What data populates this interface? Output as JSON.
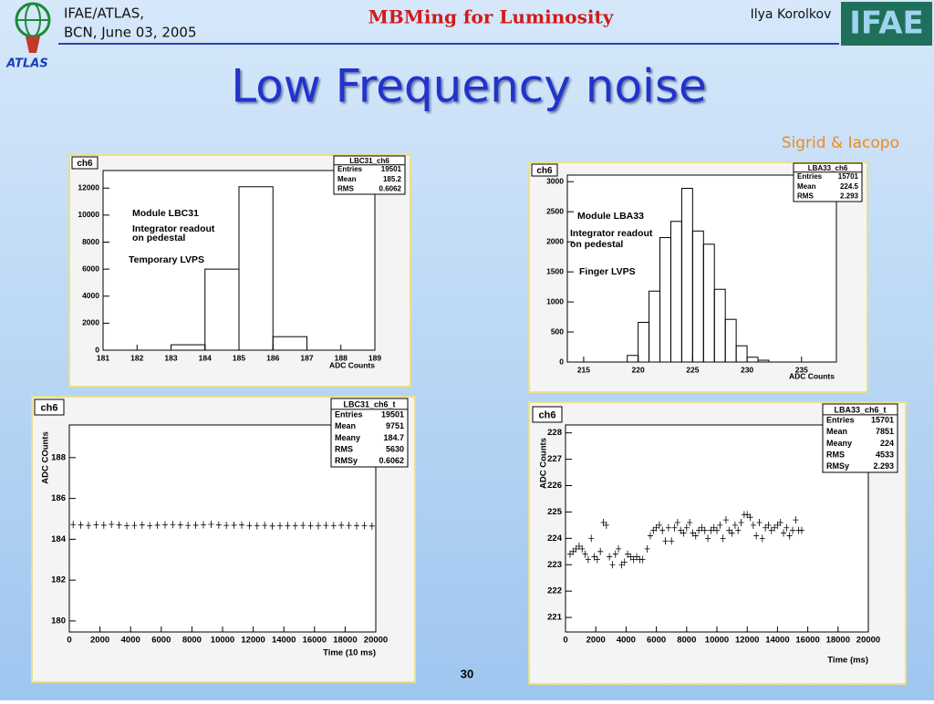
{
  "header": {
    "org": "IFAE/ATLAS,",
    "date": "BCN, June 03, 2005",
    "talk": "MBMing for Luminosity",
    "author": "Ilya Korolkov",
    "logo_left": "ATLAS",
    "logo_right": "IFAE"
  },
  "title": "Low Frequency noise",
  "credits": "Sigrid & Iacopo",
  "page_number": "30",
  "chart_data": [
    {
      "type": "histogram",
      "title": "ch6",
      "xlabel": "ADC Counts",
      "bins": [
        181,
        182,
        183,
        184,
        185,
        186,
        187,
        188,
        189
      ],
      "values": [
        0,
        0,
        400,
        6000,
        12100,
        1000,
        0,
        0
      ],
      "xlim": [
        181,
        189
      ],
      "xticks": [
        181,
        182,
        183,
        184,
        185,
        186,
        187,
        188,
        189
      ],
      "ylim": [
        0,
        13300
      ],
      "yticks": [
        0,
        2000,
        4000,
        6000,
        8000,
        10000,
        12000
      ],
      "annotations": [
        "Module LBC31",
        "Integrator readout",
        "on pedestal",
        "Temporary LVPS"
      ],
      "stats": {
        "name": "LBC31_ch6",
        "rows": [
          {
            "label": "Entries",
            "value": 19501
          },
          {
            "label": "Mean",
            "value": 185.2
          },
          {
            "label": "RMS",
            "value": 0.6062
          }
        ]
      },
      "color": "#000000"
    },
    {
      "type": "histogram",
      "title": "ch6",
      "xlabel": "ADC Counts",
      "bins": [
        219,
        220,
        221,
        222,
        223,
        224,
        225,
        226,
        227,
        228,
        229,
        230,
        231,
        232
      ],
      "values": [
        110,
        660,
        1180,
        2070,
        2340,
        2890,
        2180,
        1960,
        1210,
        710,
        270,
        80,
        30
      ],
      "xlim": [
        213.5,
        238.2
      ],
      "xticks": [
        215,
        220,
        225,
        230,
        235
      ],
      "ylim": [
        0,
        3110
      ],
      "yticks": [
        0,
        500,
        1000,
        1500,
        2000,
        2500,
        3000
      ],
      "annotations": [
        "Module LBA33",
        "Integrator readout",
        "on pedestal",
        "Finger LVPS"
      ],
      "stats": {
        "name": "LBA33_ch6",
        "rows": [
          {
            "label": "Entries",
            "value": 15701
          },
          {
            "label": "Mean",
            "value": 224.5
          },
          {
            "label": "RMS",
            "value": 2.293
          }
        ]
      },
      "color": "#000000"
    },
    {
      "type": "scatter",
      "title": "ch6",
      "xlabel": "Time (10 ms)",
      "ylabel": "ADC COunts",
      "x": [
        250,
        750,
        1250,
        1750,
        2250,
        2750,
        3250,
        3750,
        4250,
        4750,
        5250,
        5750,
        6250,
        6750,
        7250,
        7750,
        8250,
        8750,
        9250,
        9750,
        10250,
        10750,
        11250,
        11750,
        12250,
        12750,
        13250,
        13750,
        14250,
        14750,
        15250,
        15750,
        16250,
        16750,
        17250,
        17750,
        18250,
        18750,
        19250,
        19750
      ],
      "values": [
        184.72,
        184.7,
        184.68,
        184.71,
        184.69,
        184.73,
        184.7,
        184.66,
        184.68,
        184.7,
        184.67,
        184.69,
        184.71,
        184.72,
        184.7,
        184.68,
        184.69,
        184.71,
        184.73,
        184.7,
        184.68,
        184.69,
        184.7,
        184.67,
        184.66,
        184.68,
        184.65,
        184.66,
        184.67,
        184.66,
        184.68,
        184.67,
        184.66,
        184.68,
        184.67,
        184.69,
        184.68,
        184.66,
        184.67,
        184.65
      ],
      "xlim": [
        0,
        20000
      ],
      "xticks": [
        0,
        2000,
        4000,
        6000,
        8000,
        10000,
        12000,
        14000,
        16000,
        18000,
        20000
      ],
      "ylim": [
        179.46,
        189.6
      ],
      "yticks": [
        180,
        182,
        184,
        186,
        188
      ],
      "stats": {
        "name": "LBC31_ch6_t",
        "rows": [
          {
            "label": "Entries",
            "value": 19501
          },
          {
            "label": "Mean",
            "value": 9751
          },
          {
            "label": "Meany",
            "value": 184.7
          },
          {
            "label": "RMS",
            "value": 5630
          },
          {
            "label": "RMSy",
            "value": 0.6062
          }
        ]
      },
      "color": "#000000"
    },
    {
      "type": "scatter",
      "title": "ch6",
      "xlabel": "Time (ms)",
      "ylabel": "ADC Counts",
      "x": [
        300,
        500,
        700,
        900,
        1100,
        1300,
        1500,
        1700,
        1900,
        2100,
        2300,
        2500,
        2700,
        2900,
        3100,
        3300,
        3500,
        3700,
        3900,
        4100,
        4300,
        4500,
        4700,
        4900,
        5100,
        5400,
        5600,
        5800,
        6000,
        6200,
        6400,
        6600,
        6800,
        7000,
        7200,
        7400,
        7600,
        7800,
        8000,
        8200,
        8400,
        8600,
        8800,
        9000,
        9200,
        9400,
        9600,
        9800,
        10000,
        10200,
        10400,
        10600,
        10800,
        11000,
        11200,
        11400,
        11600,
        11800,
        12000,
        12200,
        12400,
        12600,
        12800,
        13000,
        13200,
        13400,
        13600,
        13800,
        14000,
        14200,
        14400,
        14600,
        14800,
        15000,
        15200,
        15400,
        15600
      ],
      "values": [
        223.4,
        223.5,
        223.6,
        223.7,
        223.6,
        223.4,
        223.2,
        224.0,
        223.3,
        223.2,
        223.5,
        224.6,
        224.5,
        223.3,
        223.0,
        223.4,
        223.6,
        223.0,
        223.1,
        223.4,
        223.3,
        223.2,
        223.3,
        223.2,
        223.2,
        223.6,
        224.1,
        224.3,
        224.4,
        224.5,
        224.3,
        223.9,
        224.4,
        223.9,
        224.4,
        224.6,
        224.3,
        224.2,
        224.4,
        224.6,
        224.2,
        224.1,
        224.3,
        224.4,
        224.3,
        224.0,
        224.3,
        224.4,
        224.3,
        224.5,
        224.0,
        224.7,
        224.3,
        224.2,
        224.5,
        224.3,
        224.6,
        224.9,
        224.9,
        224.8,
        224.5,
        224.1,
        224.6,
        224.0,
        224.4,
        224.5,
        224.3,
        224.4,
        224.5,
        224.6,
        224.2,
        224.4,
        224.1,
        224.3,
        224.7,
        224.3,
        224.3
      ],
      "xlim": [
        0,
        20000
      ],
      "xticks": [
        0,
        2000,
        4000,
        6000,
        8000,
        10000,
        12000,
        14000,
        16000,
        18000,
        20000
      ],
      "ylim": [
        220.45,
        228.3
      ],
      "yticks": [
        221,
        222,
        223,
        224,
        225,
        226,
        227,
        228
      ],
      "stats": {
        "name": "LBA33_ch6_t",
        "rows": [
          {
            "label": "Entries",
            "value": 15701
          },
          {
            "label": "Mean",
            "value": 7851
          },
          {
            "label": "Meany",
            "value": 224
          },
          {
            "label": "RMS",
            "value": 4533
          },
          {
            "label": "RMSy",
            "value": 2.293
          }
        ]
      },
      "color": "#000000"
    }
  ]
}
